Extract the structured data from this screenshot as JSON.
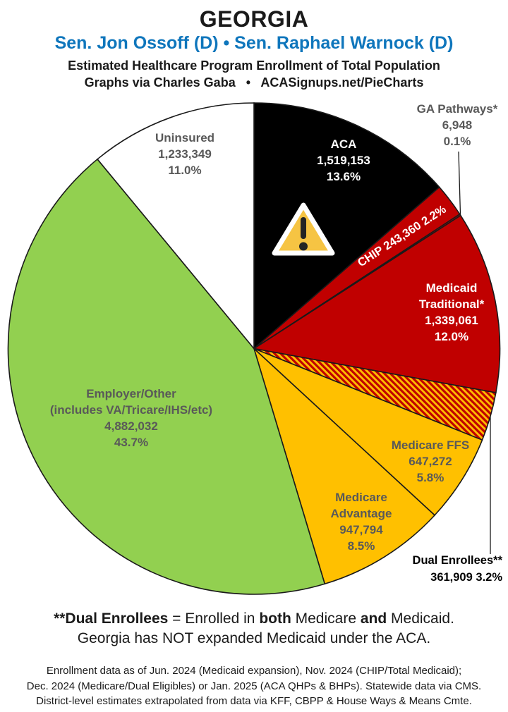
{
  "header": {
    "state": "GEORGIA",
    "senators": "Sen. Jon Ossoff (D) • Sen. Raphael Warnock (D)",
    "subtitle1": "Estimated Healthcare Program Enrollment of Total Population",
    "subtitle2": "Graphs via Charles Gaba   •   ACASignups.net/PieCharts"
  },
  "colors": {
    "accent_blue": "#0F76BC",
    "label_gray": "#595959",
    "slice_red": "#C00000",
    "slice_gold": "#FFC000",
    "slice_green": "#92D050",
    "slice_black": "#000000",
    "warning_yellow": "#F6C443"
  },
  "chart_data": {
    "type": "pie",
    "title": "Estimated Healthcare Program Enrollment of Total Population",
    "start": "12 o'clock",
    "direction": "clockwise",
    "legend": "none (labels on/beside slices)",
    "slices": [
      {
        "id": "aca",
        "name": "ACA",
        "value": "1,519,153",
        "pct": 13.6,
        "pct_label": "13.6%",
        "color": "#000000",
        "label_color": "#FFFFFF"
      },
      {
        "id": "chip",
        "name": "CHIP",
        "value": "243,360",
        "pct": 2.2,
        "pct_label": "2.2%",
        "color": "#C00000",
        "label_color": "#FFFFFF"
      },
      {
        "id": "ga-pathways",
        "name": "GA Pathways*",
        "value": "6,948",
        "pct": 0.1,
        "pct_label": "0.1%",
        "color": "#C00000",
        "label_color": "#595959"
      },
      {
        "id": "medicaid-traditional",
        "name": "Medicaid Traditional*",
        "value": "1,339,061",
        "pct": 12.0,
        "pct_label": "12.0%",
        "color": "#C00000",
        "label_color": "#FFFFFF"
      },
      {
        "id": "dual-enrollees",
        "name": "Dual Enrollees**",
        "value": "361,909",
        "pct": 3.2,
        "pct_label": "3.2%",
        "color": "hatch",
        "label_color": "#000000"
      },
      {
        "id": "medicare-ffs",
        "name": "Medicare FFS",
        "value": "647,272",
        "pct": 5.8,
        "pct_label": "5.8%",
        "color": "#FFC000",
        "label_color": "#595959"
      },
      {
        "id": "medicare-advantage",
        "name": "Medicare Advantage",
        "value": "947,794",
        "pct": 8.5,
        "pct_label": "8.5%",
        "color": "#FFC000",
        "label_color": "#595959"
      },
      {
        "id": "employer-other",
        "name": "Employer/Other",
        "sub": "(includes VA/Tricare/IHS/etc)",
        "value": "4,882,032",
        "pct": 43.7,
        "pct_label": "43.7%",
        "color": "#92D050",
        "label_color": "#595959"
      },
      {
        "id": "uninsured",
        "name": "Uninsured",
        "value": "1,233,349",
        "pct": 11.0,
        "pct_label": "11.0%",
        "color": "#FFFFFF",
        "label_color": "#595959"
      }
    ],
    "hatch_colors": [
      "#C00000",
      "#FFC000"
    ]
  },
  "notes": {
    "line1_segments": [
      {
        "text": "**Dual Enrollees",
        "bold": true
      },
      {
        "text": " = Enrolled in ",
        "bold": false
      },
      {
        "text": "both",
        "bold": true
      },
      {
        "text": " Medicare ",
        "bold": false
      },
      {
        "text": "and",
        "bold": true
      },
      {
        "text": " Medicaid.",
        "bold": false
      }
    ],
    "line2": "Georgia has NOT expanded Medicaid under the ACA.",
    "footnote_lines": [
      "Enrollment data as of Jun. 2024 (Medicaid expansion), Nov. 2024 (CHIP/Total Medicaid);",
      "Dec. 2024 (Medicare/Dual Eligibles) or Jan. 2025 (ACA QHPs & BHPs). Statewide data via CMS.",
      "District-level estimates extrapolated from data via KFF, CBPP & House Ways & Means Cmte."
    ]
  }
}
